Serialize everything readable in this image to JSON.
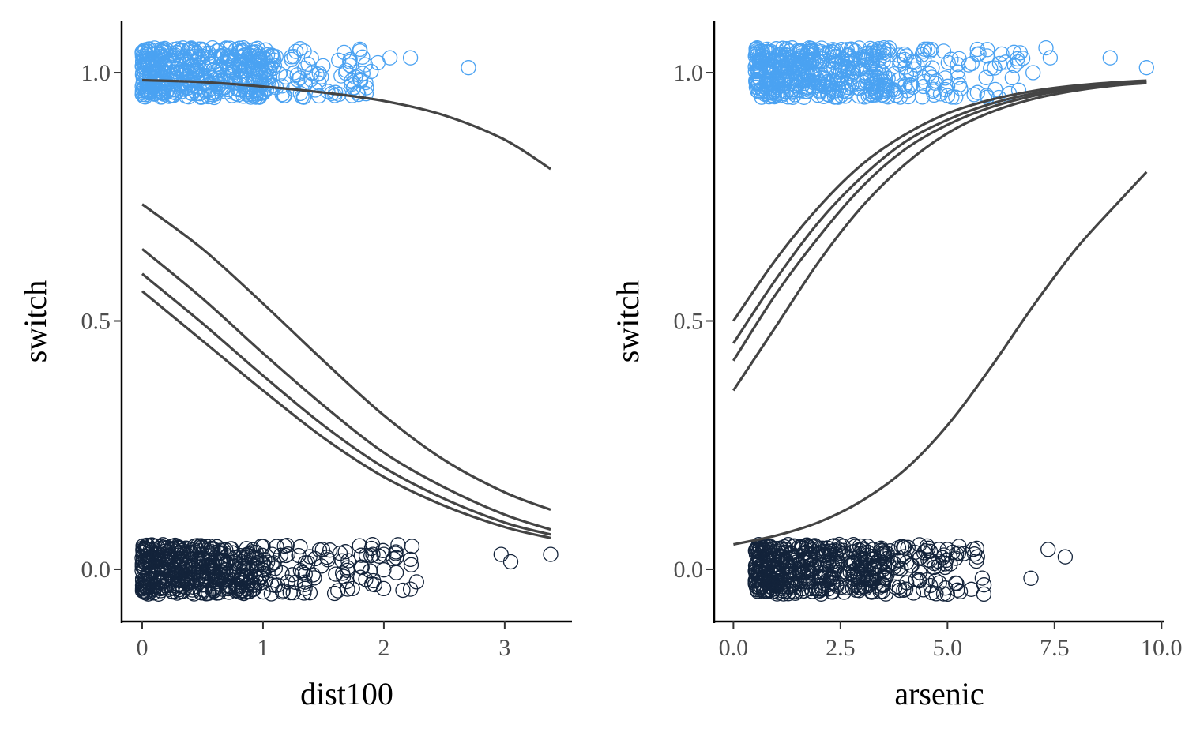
{
  "chart_data": [
    {
      "type": "scatter",
      "title": "",
      "xlabel": "dist100",
      "ylabel": "switch",
      "xlim": [
        -0.17,
        3.55
      ],
      "ylim": [
        -0.105,
        1.105
      ],
      "xticks": [
        0,
        1,
        2,
        3
      ],
      "xtick_labels": [
        "0",
        "1",
        "2",
        "3"
      ],
      "yticks": [
        0,
        0.5,
        1
      ],
      "ytick_labels": [
        "0.0",
        "0.5",
        "1.0"
      ],
      "grid": false,
      "legend": "none",
      "colors": {
        "switch_1": "#4aa2f2",
        "switch_0": "#13233a",
        "curve": "#444444"
      },
      "points": {
        "y1_summary": {
          "x_min": 0.0,
          "x_dense_max": 1.0,
          "x_max": 2.7,
          "y_jitter": 0.05
        },
        "y1_outliers": [
          [
            1.6,
            0.96
          ],
          [
            1.75,
            0.97
          ],
          [
            1.85,
            0.98
          ],
          [
            1.95,
            1.02
          ],
          [
            2.05,
            1.03
          ],
          [
            2.22,
            1.03
          ],
          [
            2.7,
            1.01
          ]
        ],
        "y0_summary": {
          "x_min": 0.0,
          "x_dense_max": 1.0,
          "x_max": 3.38,
          "y_jitter": 0.05
        },
        "y0_outliers": [
          [
            1.7,
            -0.04
          ],
          [
            1.9,
            -0.03
          ],
          [
            2.0,
            0.03
          ],
          [
            2.1,
            0.035
          ],
          [
            2.22,
            0.02
          ],
          [
            2.22,
            -0.04
          ],
          [
            2.97,
            0.03
          ],
          [
            3.05,
            0.015
          ],
          [
            3.38,
            0.03
          ]
        ]
      },
      "curves": [
        {
          "x": [
            0.0,
            0.5,
            1.0,
            1.5,
            2.0,
            2.5,
            3.0,
            3.38
          ],
          "y": [
            0.985,
            0.981,
            0.972,
            0.96,
            0.943,
            0.914,
            0.865,
            0.806
          ]
        },
        {
          "x": [
            0.0,
            0.5,
            1.0,
            1.5,
            2.0,
            2.5,
            3.0,
            3.38
          ],
          "y": [
            0.735,
            0.645,
            0.535,
            0.42,
            0.31,
            0.22,
            0.155,
            0.12
          ]
        },
        {
          "x": [
            0.0,
            0.5,
            1.0,
            1.5,
            2.0,
            2.5,
            3.0,
            3.38
          ],
          "y": [
            0.645,
            0.545,
            0.435,
            0.33,
            0.235,
            0.165,
            0.11,
            0.08
          ]
        },
        {
          "x": [
            0.0,
            0.5,
            1.0,
            1.5,
            2.0,
            2.5,
            3.0,
            3.38
          ],
          "y": [
            0.595,
            0.495,
            0.39,
            0.29,
            0.205,
            0.142,
            0.094,
            0.07
          ]
        },
        {
          "x": [
            0.0,
            0.5,
            1.0,
            1.5,
            2.0,
            2.5,
            3.0,
            3.38
          ],
          "y": [
            0.56,
            0.46,
            0.36,
            0.265,
            0.186,
            0.128,
            0.085,
            0.063
          ]
        }
      ]
    },
    {
      "type": "scatter",
      "title": "",
      "xlabel": "arsenic",
      "ylabel": "switch",
      "xlim": [
        -0.45,
        10.05
      ],
      "ylim": [
        -0.105,
        1.105
      ],
      "xticks": [
        0,
        2.5,
        5,
        7.5,
        10
      ],
      "xtick_labels": [
        "0.0",
        "2.5",
        "5.0",
        "7.5",
        "10.0"
      ],
      "yticks": [
        0,
        0.5,
        1
      ],
      "ytick_labels": [
        "0.0",
        "0.5",
        "1.0"
      ],
      "grid": false,
      "legend": "none",
      "colors": {
        "switch_1": "#4aa2f2",
        "switch_0": "#13233a",
        "curve": "#444444"
      },
      "points": {
        "y1_summary": {
          "x_min": 0.51,
          "x_dense_max": 3.5,
          "x_max": 9.65,
          "y_jitter": 0.05
        },
        "y1_outliers": [
          [
            5.7,
            0.96
          ],
          [
            5.9,
            0.99
          ],
          [
            6.2,
            0.95
          ],
          [
            6.7,
            1.04
          ],
          [
            7.0,
            1.0
          ],
          [
            7.3,
            1.05
          ],
          [
            7.4,
            1.03
          ],
          [
            8.8,
            1.03
          ],
          [
            9.65,
            1.01
          ]
        ],
        "y0_summary": {
          "x_min": 0.51,
          "x_dense_max": 3.5,
          "x_max": 7.8,
          "y_jitter": 0.05
        },
        "y0_outliers": [
          [
            4.8,
            0.04
          ],
          [
            5.0,
            0.04
          ],
          [
            5.0,
            -0.05
          ],
          [
            5.3,
            -0.045
          ],
          [
            5.6,
            0.04
          ],
          [
            5.7,
            0.025
          ],
          [
            5.85,
            -0.05
          ],
          [
            6.95,
            -0.018
          ],
          [
            7.35,
            0.04
          ],
          [
            7.75,
            0.025
          ]
        ]
      },
      "curves": [
        {
          "x": [
            0,
            1,
            2,
            3,
            4,
            5,
            6,
            7,
            8,
            9,
            9.65
          ],
          "y": [
            0.5,
            0.625,
            0.73,
            0.815,
            0.875,
            0.918,
            0.945,
            0.963,
            0.974,
            0.981,
            0.984
          ]
        },
        {
          "x": [
            0,
            1,
            2,
            3,
            4,
            5,
            6,
            7,
            8,
            9,
            9.65
          ],
          "y": [
            0.455,
            0.585,
            0.7,
            0.79,
            0.86,
            0.905,
            0.937,
            0.958,
            0.971,
            0.979,
            0.982
          ]
        },
        {
          "x": [
            0,
            1,
            2,
            3,
            4,
            5,
            6,
            7,
            8,
            9,
            9.65
          ],
          "y": [
            0.42,
            0.555,
            0.67,
            0.77,
            0.845,
            0.895,
            0.93,
            0.953,
            0.968,
            0.977,
            0.98
          ]
        },
        {
          "x": [
            0,
            1,
            2,
            3,
            4,
            5,
            6,
            7,
            8,
            9,
            9.65
          ],
          "y": [
            0.36,
            0.49,
            0.62,
            0.73,
            0.815,
            0.878,
            0.92,
            0.947,
            0.964,
            0.975,
            0.979
          ]
        },
        {
          "x": [
            0,
            1,
            2,
            3,
            4,
            5,
            6,
            7,
            8,
            9,
            9.65
          ],
          "y": [
            0.05,
            0.068,
            0.095,
            0.138,
            0.2,
            0.29,
            0.405,
            0.53,
            0.645,
            0.74,
            0.8
          ]
        }
      ]
    }
  ]
}
